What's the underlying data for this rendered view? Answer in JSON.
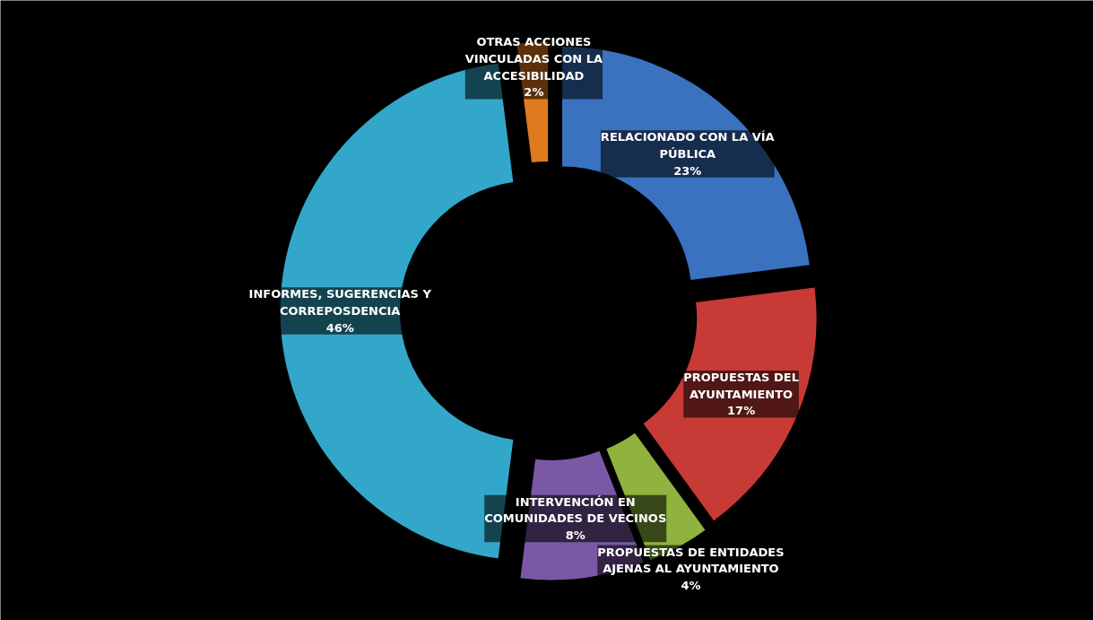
{
  "chart_data": {
    "type": "donut",
    "categories": [
      "RELACIONADO CON LA VÍA PÚBLICA",
      "PROPUESTAS DEL AYUNTAMIENTO",
      "PROPUESTAS DE ENTIDADES AJENAS AL AYUNTAMIENTO",
      "INTERVENCIÓN EN COMUNIDADES DE VECINOS",
      "INFORMES, SUGERENCIAS Y CORREPOSDENCIA",
      "OTRAS ACCIONES VINCULADAS CON LA ACCESIBILIDAD"
    ],
    "values": [
      23,
      17,
      4,
      8,
      46,
      2
    ],
    "colors": [
      "#3a72c0",
      "#c83a36",
      "#8fb33e",
      "#7a58a6",
      "#33a7c9",
      "#e07a1e"
    ],
    "value_labels": [
      "23%",
      "17%",
      "4%",
      "8%",
      "46%",
      "2%"
    ]
  }
}
